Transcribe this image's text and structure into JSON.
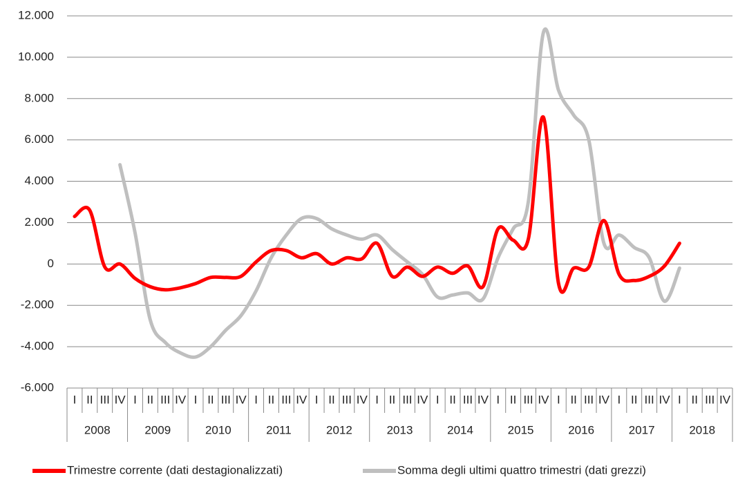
{
  "chart_data": {
    "type": "line",
    "categories": [
      "I",
      "II",
      "III",
      "IV",
      "I",
      "II",
      "III",
      "IV",
      "I",
      "II",
      "III",
      "IV",
      "I",
      "II",
      "III",
      "IV",
      "I",
      "II",
      "III",
      "IV",
      "I",
      "II",
      "III",
      "IV",
      "I",
      "II",
      "III",
      "IV",
      "I",
      "II",
      "III",
      "IV",
      "I",
      "II",
      "III",
      "IV",
      "I",
      "II",
      "III",
      "IV",
      "I",
      "II",
      "III",
      "IV"
    ],
    "years": [
      "2008",
      "2009",
      "2010",
      "2011",
      "2012",
      "2013",
      "2014",
      "2015",
      "2016",
      "2017",
      "2018"
    ],
    "series": [
      {
        "name": "Trimestre corrente (dati destagionalizzati)",
        "color": "#ff0000",
        "values": [
          2300,
          2600,
          -150,
          0,
          -700,
          -1100,
          -1250,
          -1150,
          -950,
          -650,
          -650,
          -600,
          100,
          650,
          650,
          300,
          500,
          0,
          300,
          250,
          1000,
          -600,
          -150,
          -600,
          -150,
          -450,
          -100,
          -1100,
          1700,
          1150,
          1200,
          7100,
          -950,
          -200,
          -150,
          2100,
          -500,
          -800,
          -600,
          -100,
          1000,
          null,
          null,
          null
        ]
      },
      {
        "name": "Somma degli ultimi quattro trimestri (dati grezzi)",
        "color": "#bfbfbf",
        "values": [
          null,
          null,
          null,
          4800,
          1500,
          -2700,
          -3800,
          -4300,
          -4500,
          -4000,
          -3200,
          -2500,
          -1300,
          300,
          1400,
          2200,
          2200,
          1700,
          1400,
          1200,
          1400,
          700,
          100,
          -500,
          -1600,
          -1500,
          -1400,
          -1700,
          300,
          1700,
          3000,
          11200,
          8400,
          7200,
          6000,
          1000,
          1400,
          800,
          300,
          -1800,
          -200,
          null,
          null,
          null
        ]
      }
    ],
    "ylim": [
      -6000,
      12000
    ],
    "yticks": [
      {
        "value": -6000,
        "label": "-6.000"
      },
      {
        "value": -4000,
        "label": "-4.000"
      },
      {
        "value": -2000,
        "label": "-2.000"
      },
      0,
      {
        "value": 2000,
        "label": "2.000"
      },
      {
        "value": 4000,
        "label": "4.000"
      },
      {
        "value": 6000,
        "label": "6.000"
      },
      {
        "value": 8000,
        "label": "8.000"
      },
      {
        "value": 10000,
        "label": "10.000"
      },
      {
        "value": 12000,
        "label": "12.000"
      }
    ],
    "grid": true
  }
}
